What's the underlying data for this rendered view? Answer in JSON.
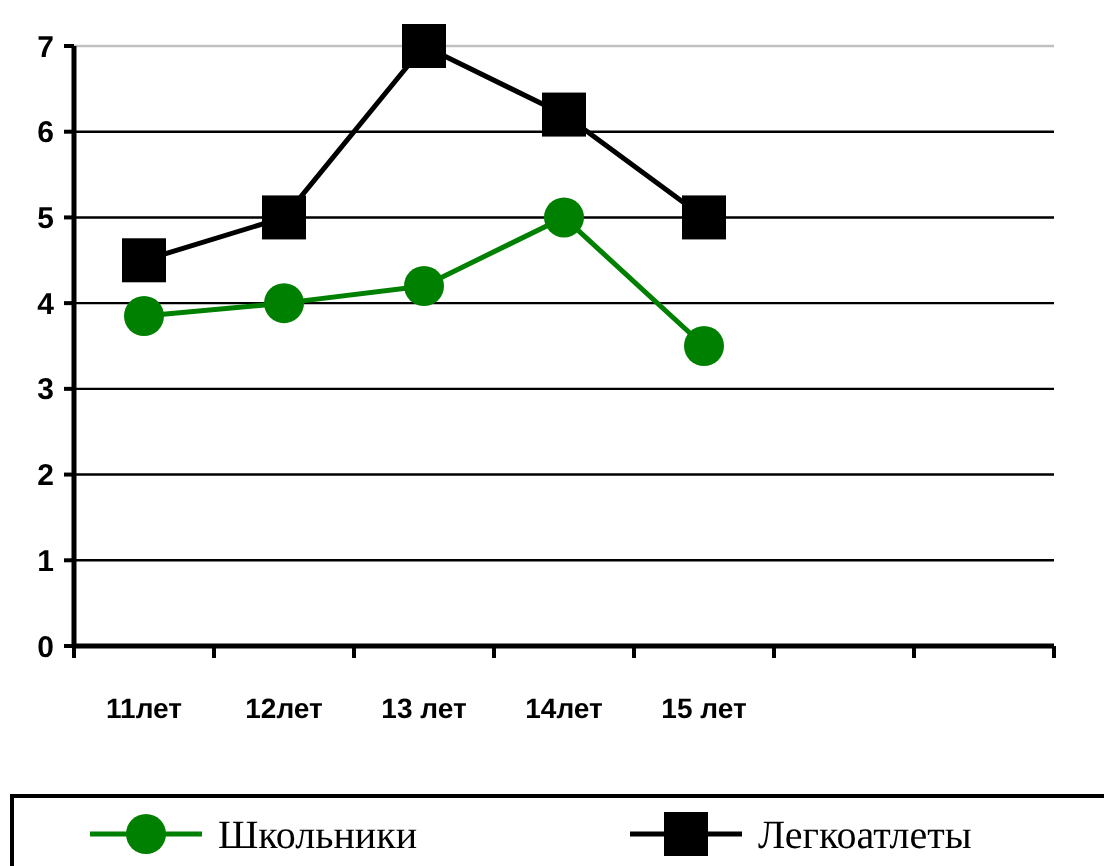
{
  "chart_data": {
    "type": "line",
    "categories": [
      "11лет",
      "12лет",
      "13 лет",
      "14лет",
      "15 лет",
      null,
      null
    ],
    "series": [
      {
        "name": "Школьники",
        "color": "#008000",
        "marker": "circle",
        "values": [
          3.85,
          4.0,
          4.2,
          5.0,
          3.5,
          null,
          null
        ]
      },
      {
        "name": "Легкоатлеты",
        "color": "#000000",
        "marker": "square",
        "values": [
          4.5,
          5.0,
          7.0,
          6.2,
          5.0,
          null,
          null
        ]
      }
    ],
    "ylim": [
      0,
      7
    ],
    "yticks": [
      0,
      1,
      2,
      3,
      4,
      5,
      6,
      7
    ],
    "grid": "y",
    "legend": "bottom"
  }
}
